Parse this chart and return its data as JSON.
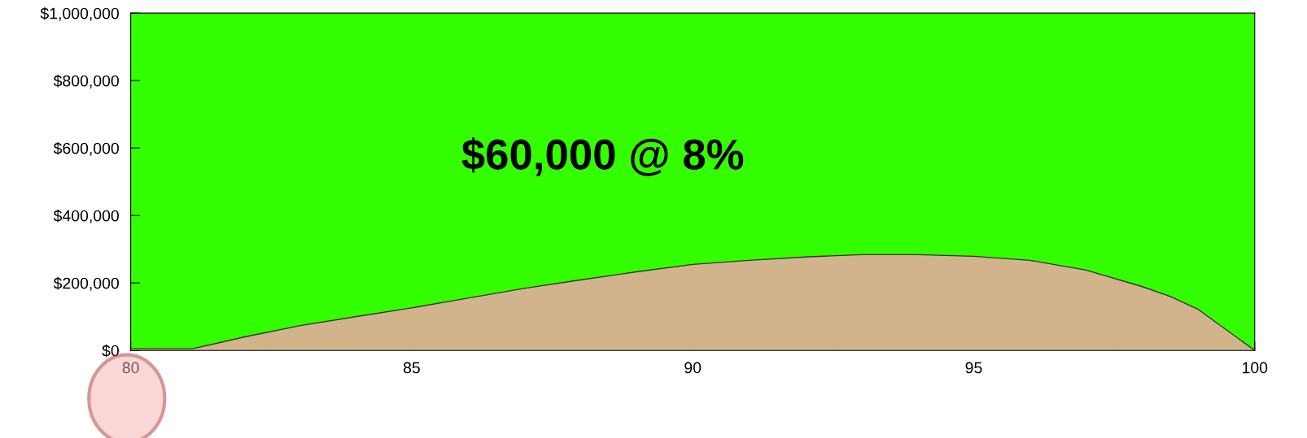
{
  "chart_data": {
    "type": "area",
    "annotations": [
      "$60,000 @ 8%"
    ],
    "x": [
      80,
      81,
      81.1,
      82,
      83,
      84,
      85,
      86,
      87,
      88,
      89,
      90,
      91,
      92,
      93,
      94,
      95,
      96,
      97,
      98,
      98.5,
      99,
      100
    ],
    "series": [
      {
        "color": "#d2b48c",
        "values": [
          5000,
          5000,
          5000,
          39000,
          73000,
          100000,
          126000,
          155000,
          184000,
          209000,
          233000,
          255000,
          267000,
          277000,
          284000,
          284000,
          279000,
          267000,
          238000,
          189000,
          160000,
          121000,
          0
        ]
      }
    ],
    "bands": [
      {
        "axis": "y",
        "from": 0,
        "to": 1000000,
        "color": "#33ff00"
      }
    ],
    "xlim": [
      80,
      100
    ],
    "xticks": [
      80,
      {
        "value": 82.5,
        "label": null
      },
      85,
      {
        "value": 87.5,
        "label": null
      },
      90,
      {
        "value": 92.5,
        "label": null
      },
      95,
      {
        "value": 97.5,
        "label": null
      },
      100
    ],
    "ylim": [
      0,
      1000000
    ],
    "yticks": [
      {
        "value": 0,
        "label": "$0"
      },
      {
        "value": 200000,
        "label": "$200,000"
      },
      {
        "value": 400000,
        "label": "$400,000"
      },
      {
        "value": 600000,
        "label": "$600,000"
      },
      {
        "value": 800000,
        "label": "$800,000"
      },
      {
        "value": 1000000,
        "label": "$1,000,000"
      }
    ],
    "grid": false,
    "legend": false
  }
}
